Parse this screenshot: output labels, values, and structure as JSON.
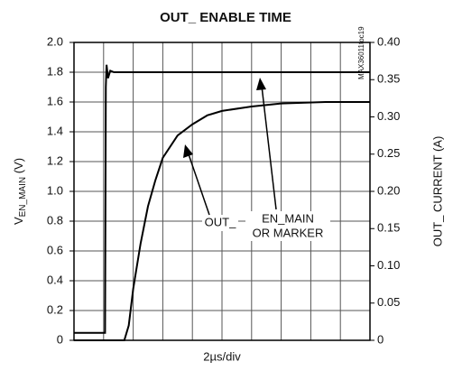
{
  "chart_data": {
    "type": "line",
    "title": "OUT_ ENABLE TIME",
    "x_label": "2µs/div",
    "y_label": "V",
    "y_label_sub": "EN_MAIN",
    "y_label_tail": " (V)",
    "y2_label": "OUT_ CURRENT (A)",
    "side_note": "MAX36011toc19",
    "annotations": [
      "EN_MAIN",
      "OR MARKER",
      "OUT_"
    ],
    "xlim": [
      0,
      20
    ],
    "xticks": [
      0,
      2,
      4,
      6,
      8,
      10,
      12,
      14,
      16,
      18,
      20
    ],
    "ylim": [
      0,
      2.0
    ],
    "yticks": [
      0,
      0.2,
      0.4,
      0.6,
      0.8,
      {
        "value": 1.0,
        "label": "1.0"
      },
      1.2,
      1.4,
      1.6,
      1.8,
      {
        "value": 2.0,
        "label": "2.0"
      }
    ],
    "y2lim": [
      0,
      0.4
    ],
    "y2ticks": [
      0,
      0.05,
      {
        "value": 0.1,
        "label": "0.10"
      },
      0.15,
      {
        "value": 0.2,
        "label": "0.20"
      },
      0.25,
      {
        "value": 0.3,
        "label": "0.30"
      },
      0.35,
      {
        "value": 0.4,
        "label": "0.40"
      }
    ],
    "grid": true,
    "series": [
      {
        "name": "EN_MAIN",
        "color": "#000000",
        "x": [
          0,
          2.1,
          2.15,
          2.2,
          2.3,
          2.45,
          2.7,
          20
        ],
        "values": [
          0.05,
          0.05,
          1.7,
          1.85,
          1.76,
          1.81,
          1.8,
          1.8
        ]
      },
      {
        "name": "OUT_",
        "color": "#000000",
        "axis": "y2",
        "x": [
          0,
          3.4,
          3.7,
          4,
          4.5,
          5,
          5.5,
          6,
          7,
          8,
          9,
          10,
          12,
          14,
          17,
          20
        ],
        "values": [
          0,
          0,
          0.02,
          0.069,
          0.13,
          0.18,
          0.215,
          0.245,
          0.275,
          0.29,
          0.302,
          0.308,
          0.314,
          0.318,
          0.32,
          0.32
        ]
      }
    ]
  }
}
